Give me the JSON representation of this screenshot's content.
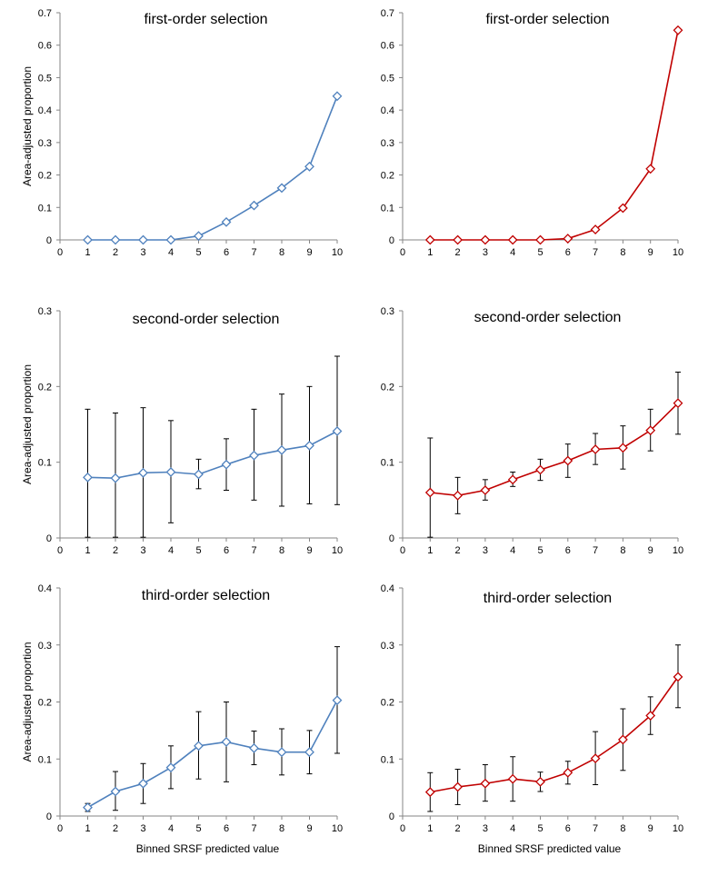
{
  "chart_data": [
    {
      "type": "line",
      "title": "first-order selection",
      "ylabel": "Area-adjusted proportion",
      "xlabel": "",
      "x": [
        1,
        2,
        3,
        4,
        5,
        6,
        7,
        8,
        9,
        10
      ],
      "xlim": [
        0,
        10
      ],
      "ylim": [
        0,
        0.7
      ],
      "yticks": [
        "0",
        "0.1",
        "0.2",
        "0.3",
        "0.4",
        "0.5",
        "0.6",
        "0.7"
      ],
      "xticks": [
        "0",
        "1",
        "2",
        "3",
        "4",
        "5",
        "6",
        "7",
        "8",
        "9",
        "10"
      ],
      "color": "#4F81BD",
      "values": [
        0,
        0,
        0,
        0,
        0.012,
        0.055,
        0.106,
        0.16,
        0.226,
        0.443
      ],
      "error_low": null,
      "error_high": null
    },
    {
      "type": "line",
      "title": "first-order selection",
      "ylabel": "",
      "xlabel": "",
      "x": [
        1,
        2,
        3,
        4,
        5,
        6,
        7,
        8,
        9,
        10
      ],
      "xlim": [
        0,
        10
      ],
      "ylim": [
        0,
        0.7
      ],
      "yticks": [
        "0",
        "0.1",
        "0.2",
        "0.3",
        "0.4",
        "0.5",
        "0.6",
        "0.7"
      ],
      "xticks": [
        "0",
        "1",
        "2",
        "3",
        "4",
        "5",
        "6",
        "7",
        "8",
        "9",
        "10"
      ],
      "color": "#C00000",
      "values": [
        0,
        0,
        0,
        0,
        0,
        0.004,
        0.032,
        0.098,
        0.219,
        0.646
      ],
      "error_low": null,
      "error_high": null
    },
    {
      "type": "line",
      "title": "second-order selection",
      "ylabel": "Area-adjusted proportion",
      "xlabel": "",
      "x": [
        1,
        2,
        3,
        4,
        5,
        6,
        7,
        8,
        9,
        10
      ],
      "xlim": [
        0,
        10
      ],
      "ylim": [
        0,
        0.3
      ],
      "yticks": [
        "0",
        "0.1",
        "0.2",
        "0.3"
      ],
      "xticks": [
        "0",
        "1",
        "2",
        "3",
        "4",
        "5",
        "6",
        "7",
        "8",
        "9",
        "10"
      ],
      "color": "#4F81BD",
      "values": [
        0.08,
        0.079,
        0.086,
        0.087,
        0.084,
        0.097,
        0.109,
        0.116,
        0.122,
        0.141
      ],
      "error_low": [
        0.001,
        0.001,
        0.001,
        0.02,
        0.065,
        0.063,
        0.05,
        0.042,
        0.045,
        0.044
      ],
      "error_high": [
        0.17,
        0.165,
        0.172,
        0.155,
        0.104,
        0.131,
        0.17,
        0.19,
        0.2,
        0.24
      ]
    },
    {
      "type": "line",
      "title": "second-order selection",
      "ylabel": "",
      "xlabel": "",
      "x": [
        1,
        2,
        3,
        4,
        5,
        6,
        7,
        8,
        9,
        10
      ],
      "xlim": [
        0,
        10
      ],
      "ylim": [
        0,
        0.3
      ],
      "yticks": [
        "0",
        "0.1",
        "0.2",
        "0.3"
      ],
      "xticks": [
        "0",
        "1",
        "2",
        "3",
        "4",
        "5",
        "6",
        "7",
        "8",
        "9",
        "10"
      ],
      "color": "#C00000",
      "values": [
        0.06,
        0.056,
        0.063,
        0.077,
        0.09,
        0.102,
        0.117,
        0.119,
        0.142,
        0.178
      ],
      "error_low": [
        0.001,
        0.032,
        0.05,
        0.068,
        0.076,
        0.08,
        0.097,
        0.091,
        0.115,
        0.137
      ],
      "error_high": [
        0.132,
        0.08,
        0.077,
        0.087,
        0.104,
        0.124,
        0.138,
        0.148,
        0.17,
        0.219
      ]
    },
    {
      "type": "line",
      "title": "third-order selection",
      "ylabel": "Area-adjusted proportion",
      "xlabel": "Binned SRSF predicted value",
      "x": [
        1,
        2,
        3,
        4,
        5,
        6,
        7,
        8,
        9,
        10
      ],
      "xlim": [
        0,
        10
      ],
      "ylim": [
        0,
        0.4
      ],
      "yticks": [
        "0",
        "0.1",
        "0.2",
        "0.3",
        "0.4"
      ],
      "xticks": [
        "0",
        "1",
        "2",
        "3",
        "4",
        "5",
        "6",
        "7",
        "8",
        "9",
        "10"
      ],
      "color": "#4F81BD",
      "values": [
        0.015,
        0.043,
        0.057,
        0.085,
        0.123,
        0.13,
        0.119,
        0.112,
        0.112,
        0.203
      ],
      "error_low": [
        0.008,
        0.01,
        0.022,
        0.048,
        0.065,
        0.06,
        0.09,
        0.072,
        0.074,
        0.11
      ],
      "error_high": [
        0.022,
        0.078,
        0.092,
        0.123,
        0.183,
        0.2,
        0.149,
        0.153,
        0.15,
        0.297
      ]
    },
    {
      "type": "line",
      "title": "third-order selection",
      "ylabel": "",
      "xlabel": "Binned SRSF predicted value",
      "x": [
        1,
        2,
        3,
        4,
        5,
        6,
        7,
        8,
        9,
        10
      ],
      "xlim": [
        0,
        10
      ],
      "ylim": [
        0,
        0.4
      ],
      "yticks": [
        "0",
        "0.1",
        "0.2",
        "0.3",
        "0.4"
      ],
      "xticks": [
        "0",
        "1",
        "2",
        "3",
        "4",
        "5",
        "6",
        "7",
        "8",
        "9",
        "10"
      ],
      "color": "#C00000",
      "values": [
        0.042,
        0.051,
        0.057,
        0.065,
        0.06,
        0.076,
        0.101,
        0.134,
        0.176,
        0.244
      ],
      "error_low": [
        0.008,
        0.02,
        0.026,
        0.026,
        0.043,
        0.056,
        0.055,
        0.08,
        0.143,
        0.19
      ],
      "error_high": [
        0.076,
        0.082,
        0.09,
        0.104,
        0.077,
        0.096,
        0.148,
        0.188,
        0.209,
        0.3
      ]
    }
  ]
}
